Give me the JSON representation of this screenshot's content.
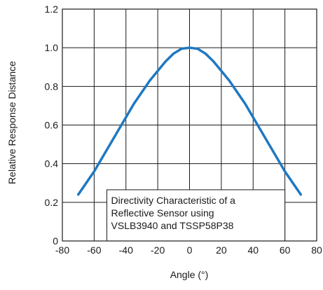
{
  "chart_data": {
    "type": "line",
    "title": "",
    "xlabel": "Angle (°)",
    "ylabel": "Relative Response Distance",
    "xlim": [
      -80,
      80
    ],
    "ylim": [
      0,
      1.2
    ],
    "grid": true,
    "x_ticks": [
      -80,
      -60,
      -40,
      -20,
      0,
      20,
      40,
      60,
      80
    ],
    "y_ticks": [
      0,
      0.2,
      0.4,
      0.6,
      0.8,
      1.0,
      1.2
    ],
    "x_tick_labels": [
      "-80",
      "-60",
      "-40",
      "-20",
      "0",
      "20",
      "40",
      "60",
      "80"
    ],
    "y_tick_labels": [
      "0",
      "0.2",
      "0.4",
      "0.6",
      "0.8",
      "1.0",
      "1.2"
    ],
    "series": [
      {
        "color": "#1f78c1",
        "x": [
          -70,
          -65,
          -60,
          -55,
          -50,
          -45,
          -40,
          -35,
          -30,
          -25,
          -20,
          -15,
          -10,
          -5,
          0,
          5,
          10,
          15,
          20,
          25,
          30,
          35,
          40,
          45,
          50,
          55,
          60,
          65,
          70
        ],
        "y": [
          0.24,
          0.3,
          0.36,
          0.43,
          0.5,
          0.57,
          0.64,
          0.71,
          0.77,
          0.83,
          0.88,
          0.93,
          0.97,
          0.995,
          1.0,
          0.995,
          0.97,
          0.93,
          0.88,
          0.83,
          0.77,
          0.71,
          0.64,
          0.57,
          0.5,
          0.43,
          0.36,
          0.3,
          0.24
        ]
      }
    ],
    "annotation": {
      "lines": [
        "Directivity Characteristic of a",
        "Reflective Sensor using",
        "VSLB3940 and TSSP58P38"
      ]
    }
  }
}
